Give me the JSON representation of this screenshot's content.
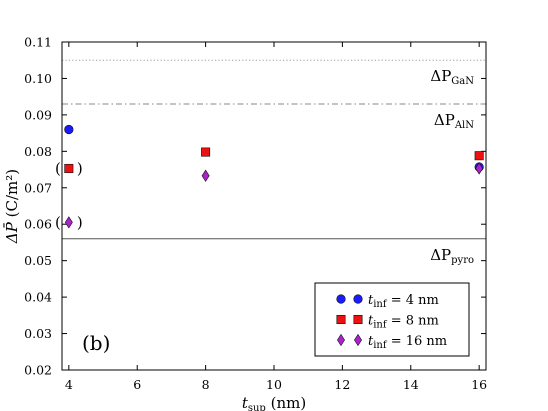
{
  "chart_data": {
    "type": "scatter",
    "panel_label": "(b)",
    "xlabel": {
      "main": "t",
      "sub": "sup",
      "unit": "(nm)"
    },
    "ylabel": {
      "main": "ΔP̄",
      "unit": "(C/m²)"
    },
    "xlim": [
      3.8,
      16.2
    ],
    "ylim": [
      0.02,
      0.11
    ],
    "xticks": [
      "4",
      "6",
      "8",
      "10",
      "12",
      "14",
      "16"
    ],
    "yticks": [
      "0.02",
      "0.03",
      "0.04",
      "0.05",
      "0.06",
      "0.07",
      "0.08",
      "0.09",
      "0.10",
      "0.11"
    ],
    "grid": false,
    "legend_position": "bottom-right",
    "reference_lines": [
      {
        "name": "ΔP",
        "sub": "GaN",
        "y": 0.105,
        "style": "dotted",
        "color": "#999999"
      },
      {
        "name": "ΔP",
        "sub": "AlN",
        "y": 0.093,
        "style": "dashdot",
        "color": "#888888"
      },
      {
        "name": "ΔP",
        "sub": "pyro",
        "y": 0.056,
        "style": "solid",
        "color": "#555555"
      }
    ],
    "series": [
      {
        "name": "t",
        "sub": "inf",
        "eq": "= 4 nm",
        "marker": "circle",
        "color": "#1a1aff",
        "x": [
          4,
          16
        ],
        "y": [
          0.086,
          0.0757
        ]
      },
      {
        "name": "t",
        "sub": "inf",
        "eq": "= 8 nm",
        "marker": "square",
        "color": "#ee1111",
        "x": [
          4,
          8,
          16
        ],
        "y": [
          0.0753,
          0.0798,
          0.0788
        ]
      },
      {
        "name": "t",
        "sub": "inf",
        "eq": "= 16 nm",
        "marker": "diamond",
        "color": "#aa22cc",
        "x": [
          4,
          8,
          16
        ],
        "y": [
          0.0605,
          0.0733,
          0.0753
        ]
      }
    ],
    "bracketed_points": [
      {
        "series": 1,
        "x": 4,
        "y": 0.0753
      },
      {
        "series": 2,
        "x": 4,
        "y": 0.0605
      }
    ]
  }
}
